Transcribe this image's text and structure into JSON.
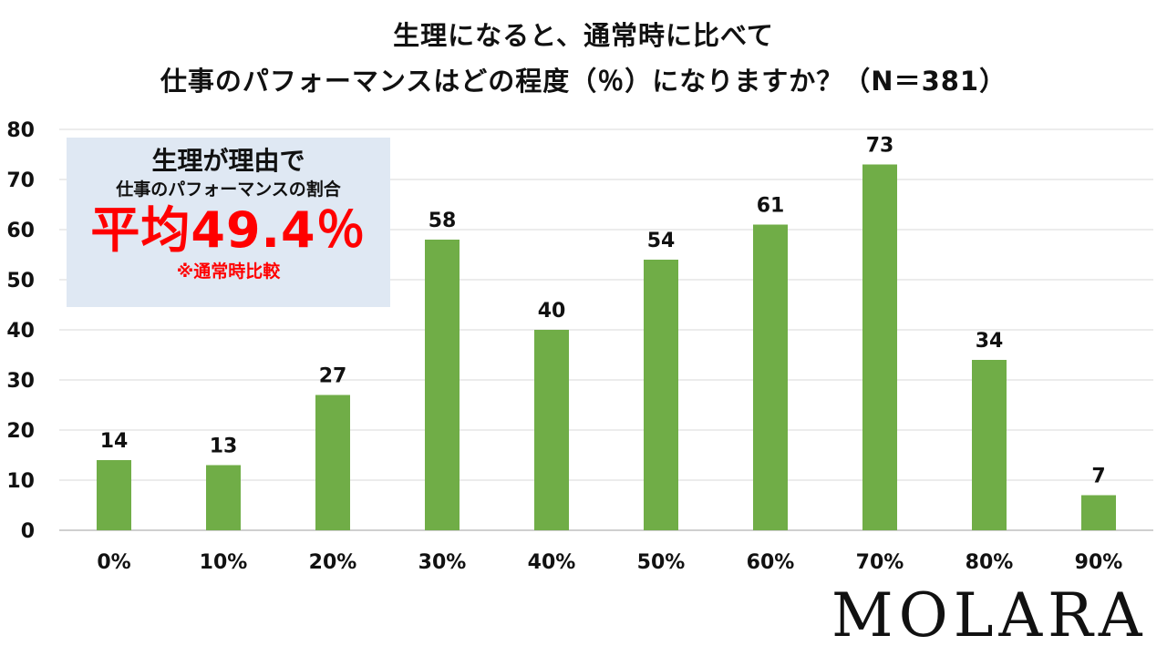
{
  "chart_data": {
    "type": "bar",
    "title_lines": [
      "生理になると、通常時に比べて",
      "仕事のパフォーマンスはどの程度（％）になりますか？（N＝381）"
    ],
    "categories": [
      "0%",
      "10%",
      "20%",
      "30%",
      "40%",
      "50%",
      "60%",
      "70%",
      "80%",
      "90%"
    ],
    "values": [
      14,
      13,
      27,
      58,
      40,
      54,
      61,
      73,
      34,
      7
    ],
    "ylim": [
      0,
      80
    ],
    "yticks": [
      0,
      10,
      20,
      30,
      40,
      50,
      60,
      70,
      80
    ],
    "grid": true,
    "legend": "none",
    "bar_color": "#70ad47",
    "annotation": {
      "heading": "生理が理由で",
      "subheading": "仕事のパフォーマンスの割合",
      "average": "平均49.4％",
      "note": "※通常時比較",
      "box_color": "#dfe8f3",
      "highlight_color": "#ff0000"
    }
  },
  "brand": {
    "logo_text": "MOLARA"
  }
}
